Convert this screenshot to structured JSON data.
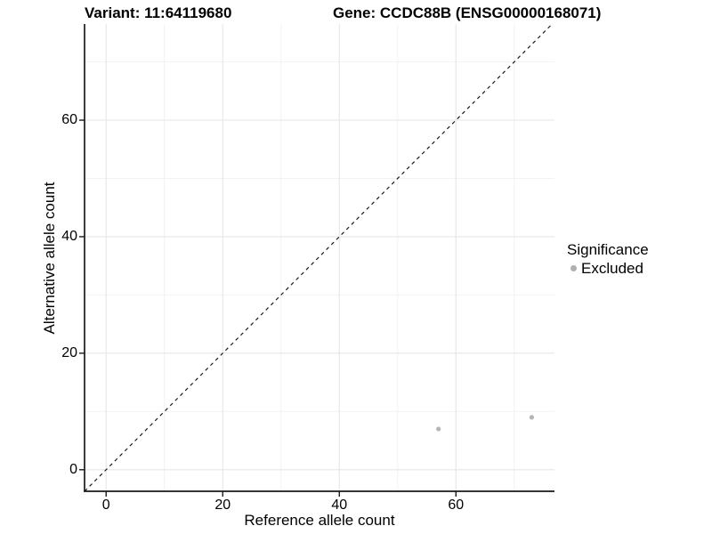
{
  "chart_data": {
    "type": "scatter",
    "titles": {
      "left": "Variant: 11:64119680",
      "right": "Gene: CCDC88B (ENSG00000168071)"
    },
    "xlabel": "Reference allele count",
    "ylabel": "Alternative allele count",
    "xlim": [
      -3.7,
      76.9
    ],
    "ylim": [
      -3.7,
      76.5
    ],
    "x_major_ticks": [
      0,
      20,
      40,
      60
    ],
    "y_major_ticks": [
      0,
      20,
      40,
      60
    ],
    "x_minor_gridlines": [
      10,
      30,
      50,
      70
    ],
    "y_minor_gridlines": [
      10,
      30,
      50,
      70
    ],
    "grid": "major+minor",
    "reference_line": {
      "type": "identity",
      "slope": 1,
      "intercept": 0,
      "style": "dashed"
    },
    "series": [
      {
        "name": "Excluded",
        "marker": "circle",
        "color": "#b5b5b5",
        "points": [
          [
            57,
            7
          ],
          [
            73,
            9
          ]
        ]
      }
    ],
    "legend": {
      "title": "Significance",
      "position": "right",
      "items": [
        {
          "label": "Excluded",
          "color": "#b0b0b0"
        }
      ]
    },
    "colors": {
      "background": "#ffffff",
      "grid_major": "#e6e6e6",
      "grid_minor": "#f2f2f2",
      "axis_line": "#1a1a1a",
      "reference_line": "#1a1a1a",
      "text": "#000000"
    }
  }
}
